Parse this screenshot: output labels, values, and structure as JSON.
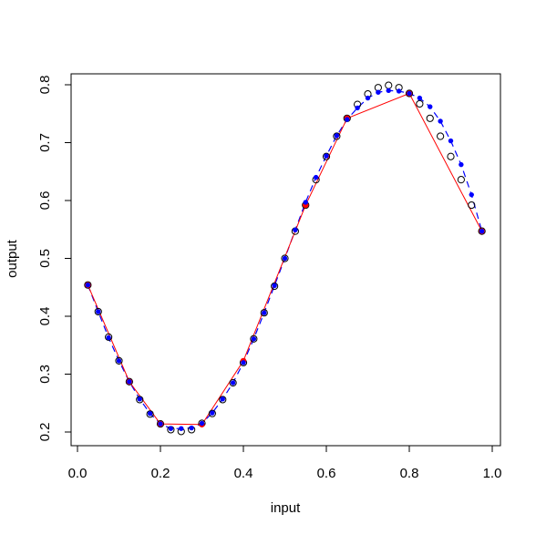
{
  "chart_data": {
    "type": "scatter",
    "title": "",
    "xlabel": "input",
    "ylabel": "output",
    "xlim": [
      0.0,
      1.0
    ],
    "ylim": [
      0.2,
      0.8
    ],
    "xticks": [
      "0.0",
      "0.2",
      "0.4",
      "0.6",
      "0.8",
      "1.0"
    ],
    "yticks": [
      "0.2",
      "0.3",
      "0.4",
      "0.5",
      "0.6",
      "0.7",
      "0.8"
    ],
    "grid": false,
    "legend": "none",
    "colors": {
      "open_points": "#000000",
      "blue": "#0000ff",
      "red": "#ff0000"
    },
    "series": [
      {
        "marker": "open-circle",
        "x": [
          0.025,
          0.05,
          0.075,
          0.1,
          0.125,
          0.15,
          0.175,
          0.2,
          0.225,
          0.25,
          0.275,
          0.3,
          0.325,
          0.35,
          0.375,
          0.4,
          0.425,
          0.45,
          0.475,
          0.5,
          0.525,
          0.55,
          0.575,
          0.6,
          0.625,
          0.65,
          0.675,
          0.7,
          0.725,
          0.75,
          0.775,
          0.8,
          0.825,
          0.85,
          0.875,
          0.9,
          0.925,
          0.95,
          0.975
        ],
        "y": [
          0.454,
          0.408,
          0.364,
          0.323,
          0.287,
          0.256,
          0.231,
          0.214,
          0.204,
          0.201,
          0.204,
          0.215,
          0.232,
          0.256,
          0.285,
          0.32,
          0.361,
          0.406,
          0.452,
          0.5,
          0.547,
          0.592,
          0.636,
          0.676,
          0.711,
          0.742,
          0.766,
          0.784,
          0.795,
          0.799,
          0.795,
          0.785,
          0.767,
          0.742,
          0.711,
          0.676,
          0.636,
          0.592,
          0.547
        ]
      },
      {
        "marker": "filled-circle",
        "line": "dashed",
        "color": "#0000ff",
        "x": [
          0.025,
          0.05,
          0.075,
          0.1,
          0.125,
          0.15,
          0.175,
          0.2,
          0.225,
          0.25,
          0.275,
          0.3,
          0.325,
          0.35,
          0.375,
          0.4,
          0.425,
          0.45,
          0.475,
          0.5,
          0.525,
          0.55,
          0.575,
          0.6,
          0.625,
          0.65,
          0.675,
          0.7,
          0.725,
          0.75,
          0.775,
          0.8,
          0.825,
          0.85,
          0.875,
          0.9,
          0.925,
          0.95,
          0.975
        ],
        "y": [
          0.454,
          0.408,
          0.363,
          0.323,
          0.287,
          0.257,
          0.232,
          0.214,
          0.206,
          0.206,
          0.207,
          0.215,
          0.233,
          0.257,
          0.285,
          0.32,
          0.361,
          0.406,
          0.453,
          0.5,
          0.549,
          0.597,
          0.64,
          0.677,
          0.712,
          0.74,
          0.76,
          0.777,
          0.787,
          0.79,
          0.789,
          0.785,
          0.777,
          0.762,
          0.737,
          0.703,
          0.662,
          0.61,
          0.547
        ]
      },
      {
        "marker": "filled-circle",
        "line": "solid",
        "color": "#ff0000",
        "x": [
          0.025,
          0.125,
          0.2,
          0.3,
          0.4,
          0.55,
          0.65,
          0.8,
          0.975
        ],
        "y": [
          0.454,
          0.287,
          0.214,
          0.213,
          0.323,
          0.592,
          0.742,
          0.785,
          0.547
        ]
      }
    ]
  }
}
